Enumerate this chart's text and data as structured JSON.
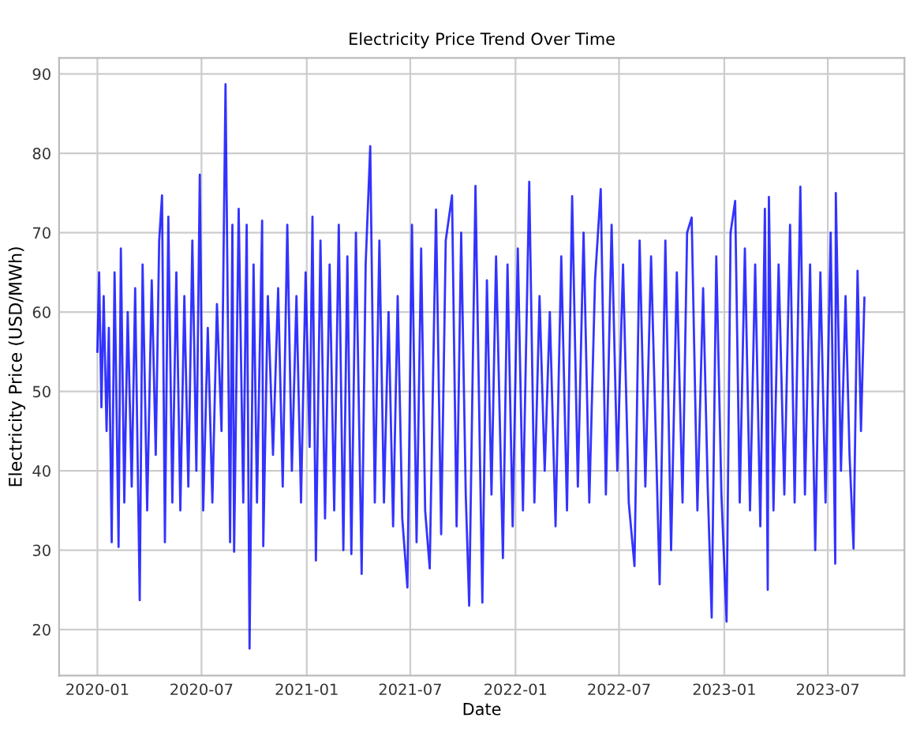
{
  "chart_data": {
    "type": "line",
    "title": "Electricity Price Trend Over Time",
    "xlabel": "Date",
    "ylabel": "Electricity Price (USD/MWh)",
    "x": [
      "2020-01-01",
      "2020-01-04",
      "2020-01-08",
      "2020-01-12",
      "2020-01-17",
      "2020-01-21",
      "2020-01-26",
      "2020-01-31",
      "2020-02-07",
      "2020-02-11",
      "2020-02-17",
      "2020-02-23",
      "2020-03-01",
      "2020-03-07",
      "2020-03-15",
      "2020-03-20",
      "2020-03-28",
      "2020-04-05",
      "2020-04-12",
      "2020-04-18",
      "2020-04-23",
      "2020-04-28",
      "2020-05-04",
      "2020-05-11",
      "2020-05-18",
      "2020-05-25",
      "2020-06-01",
      "2020-06-08",
      "2020-06-15",
      "2020-06-22",
      "2020-06-28",
      "2020-07-04",
      "2020-07-12",
      "2020-07-20",
      "2020-07-28",
      "2020-08-05",
      "2020-08-12",
      "2020-08-20",
      "2020-08-24",
      "2020-08-27",
      "2020-09-04",
      "2020-09-12",
      "2020-09-18",
      "2020-09-23",
      "2020-09-30",
      "2020-10-06",
      "2020-10-15",
      "2020-10-17",
      "2020-10-25",
      "2020-11-03",
      "2020-11-12",
      "2020-11-20",
      "2020-11-28",
      "2020-12-06",
      "2020-12-14",
      "2020-12-22",
      "2020-12-30",
      "2021-01-06",
      "2021-01-11",
      "2021-01-17",
      "2021-01-25",
      "2021-02-02",
      "2021-02-10",
      "2021-02-18",
      "2021-02-26",
      "2021-03-06",
      "2021-03-13",
      "2021-03-20",
      "2021-03-28",
      "2021-04-07",
      "2021-04-14",
      "2021-04-22",
      "2021-04-30",
      "2021-05-08",
      "2021-05-16",
      "2021-05-24",
      "2021-06-01",
      "2021-06-09",
      "2021-06-17",
      "2021-06-26",
      "2021-07-04",
      "2021-07-12",
      "2021-07-20",
      "2021-07-27",
      "2021-08-04",
      "2021-08-15",
      "2021-08-24",
      "2021-09-01",
      "2021-09-12",
      "2021-09-20",
      "2021-09-28",
      "2021-10-06",
      "2021-10-12",
      "2021-10-23",
      "2021-11-04",
      "2021-11-12",
      "2021-11-20",
      "2021-11-28",
      "2021-12-10",
      "2021-12-18",
      "2021-12-27",
      "2022-01-05",
      "2022-01-14",
      "2022-01-25",
      "2022-02-03",
      "2022-02-12",
      "2022-02-21",
      "2022-03-02",
      "2022-03-12",
      "2022-03-22",
      "2022-04-01",
      "2022-04-10",
      "2022-04-20",
      "2022-04-30",
      "2022-05-10",
      "2022-05-20",
      "2022-05-30",
      "2022-06-08",
      "2022-06-18",
      "2022-06-28",
      "2022-07-08",
      "2022-07-18",
      "2022-07-28",
      "2022-08-06",
      "2022-08-16",
      "2022-08-26",
      "2022-09-10",
      "2022-09-20",
      "2022-09-30",
      "2022-10-10",
      "2022-10-20",
      "2022-10-28",
      "2022-11-05",
      "2022-11-15",
      "2022-11-25",
      "2022-12-03",
      "2022-12-10",
      "2022-12-18",
      "2022-12-27",
      "2023-01-05",
      "2023-01-12",
      "2023-01-20",
      "2023-01-28",
      "2023-02-06",
      "2023-02-15",
      "2023-02-24",
      "2023-03-05",
      "2023-03-13",
      "2023-03-18",
      "2023-03-20",
      "2023-03-28",
      "2023-04-06",
      "2023-04-16",
      "2023-04-26",
      "2023-05-04",
      "2023-05-14",
      "2023-05-22",
      "2023-05-31",
      "2023-06-09",
      "2023-06-18",
      "2023-06-27",
      "2023-07-06",
      "2023-07-14",
      "2023-07-15",
      "2023-07-24",
      "2023-08-01",
      "2023-08-08",
      "2023-08-15",
      "2023-08-22",
      "2023-08-28",
      "2023-09-03"
    ],
    "series": [
      {
        "color": "#0000ff",
        "values": [
          55,
          65,
          48,
          62,
          45,
          58,
          31,
          65,
          30.4,
          68,
          36,
          60,
          38,
          63,
          23.7,
          66,
          35,
          64,
          42,
          69,
          74.7,
          31,
          72,
          36,
          65,
          35,
          62,
          38,
          69,
          40,
          77.3,
          35,
          58,
          36,
          61,
          45,
          88.7,
          31,
          71,
          29.8,
          73,
          36,
          71,
          17.6,
          66,
          36,
          71.5,
          30.5,
          62,
          42,
          63,
          38,
          71,
          40,
          62,
          36,
          65,
          43,
          72,
          28.7,
          69,
          34,
          66,
          35,
          71,
          30,
          67,
          29.5,
          70,
          27,
          66,
          80.9,
          36,
          69,
          36,
          60,
          33,
          62,
          34,
          25.3,
          71,
          31,
          68,
          35,
          27.7,
          72.9,
          32,
          69,
          74.7,
          33,
          70,
          37,
          23,
          75.9,
          23.4,
          64,
          37,
          67,
          29,
          66,
          33,
          68,
          35,
          76.4,
          36,
          62,
          40,
          60,
          33,
          67,
          35,
          74.6,
          38,
          70,
          36,
          64,
          75.5,
          37,
          71,
          40,
          66,
          36,
          28,
          69,
          38,
          67,
          25.7,
          69,
          30,
          65,
          36,
          70,
          71.9,
          35,
          63,
          38,
          21.5,
          67,
          37,
          21,
          70,
          74,
          36,
          68,
          35,
          66,
          33,
          73,
          25,
          74.5,
          35,
          66,
          37,
          71,
          36,
          75.8,
          37,
          66,
          30,
          65,
          36,
          70,
          28.3,
          75,
          40,
          62,
          42,
          30.2,
          65.2,
          45,
          61.8
        ]
      }
    ],
    "xlim": [
      "2019-10-26",
      "2023-11-12"
    ],
    "ylim": [
      14.2,
      92
    ],
    "xticks": [
      {
        "value": "2020-01-01",
        "label": "2020-01"
      },
      {
        "value": "2020-07-01",
        "label": "2020-07"
      },
      {
        "value": "2021-01-01",
        "label": "2021-01"
      },
      {
        "value": "2021-07-01",
        "label": "2021-07"
      },
      {
        "value": "2022-01-01",
        "label": "2022-01"
      },
      {
        "value": "2022-07-01",
        "label": "2022-07"
      },
      {
        "value": "2023-01-01",
        "label": "2023-01"
      },
      {
        "value": "2023-07-01",
        "label": "2023-07"
      }
    ],
    "yticks": [
      20,
      30,
      40,
      50,
      60,
      70,
      80,
      90
    ],
    "grid": true,
    "marker": "none",
    "line_style": "solid"
  }
}
